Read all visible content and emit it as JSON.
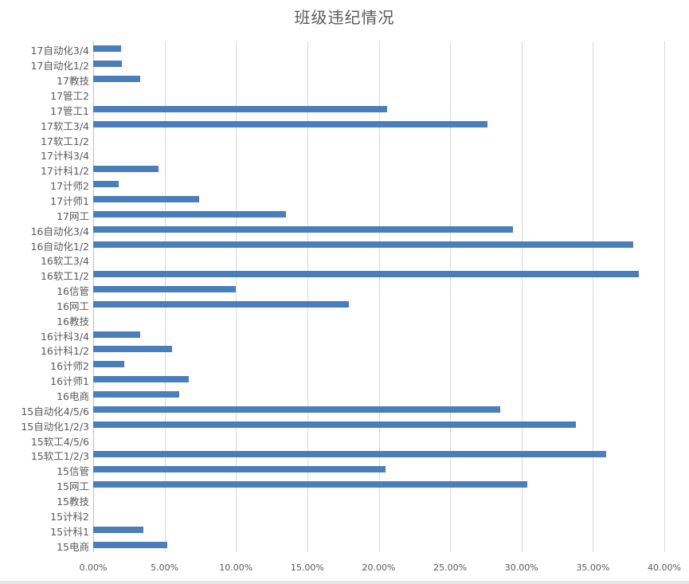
{
  "chart_data": {
    "type": "bar",
    "orientation": "horizontal",
    "title": "班级违纪情况",
    "xlabel": "",
    "ylabel": "",
    "xlim": [
      0,
      40
    ],
    "grid": true,
    "legend": "none",
    "bar_color": "#4a7ebb",
    "x_ticks": [
      "0.00%",
      "5.00%",
      "10.00%",
      "15.00%",
      "20.00%",
      "25.00%",
      "30.00%",
      "35.00%",
      "40.00%"
    ],
    "categories": [
      "17自动化3/4",
      "17自动化1/2",
      "17教技",
      "17管工2",
      "17管工1",
      "17软工3/4",
      "17软工1/2",
      "17计科3/4",
      "17计科1/2",
      "17计师2",
      "17计师1",
      "17网工",
      "16自动化3/4",
      "16自动化1/2",
      "16软工3/4",
      "16软工1/2",
      "16信管",
      "16网工",
      "16教技",
      "16计科3/4",
      "16计科1/2",
      "16计师2",
      "16计师1",
      "16电商",
      "15自动化4/5/6",
      "15自动化1/2/3",
      "15软工4/5/6",
      "15软工1/2/3",
      "15信管",
      "15网工",
      "15教技",
      "15计科2",
      "15计科1",
      "15电商"
    ],
    "values": [
      1.95,
      2.0,
      3.3,
      0,
      20.6,
      27.6,
      0,
      0,
      4.6,
      1.8,
      7.4,
      13.5,
      29.4,
      37.8,
      0,
      38.2,
      10.0,
      17.9,
      0,
      3.3,
      5.5,
      2.2,
      6.7,
      6.0,
      28.5,
      33.8,
      0,
      35.9,
      20.5,
      30.4,
      0,
      0,
      3.5,
      5.2
    ],
    "unit": "%"
  }
}
